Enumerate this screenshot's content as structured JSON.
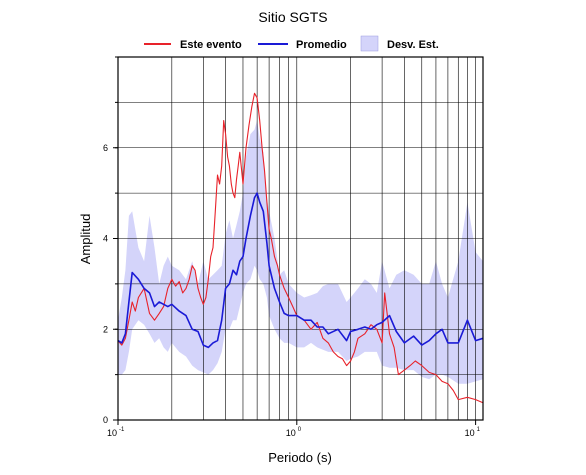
{
  "chart_data": {
    "type": "line",
    "title": "Sitio SGTS",
    "xlabel": "Periodo (s)",
    "ylabel": "Amplitud",
    "xscale": "log",
    "xlim": [
      0.1,
      11
    ],
    "ylim": [
      0,
      8
    ],
    "grid": true,
    "legend_position": "top",
    "x_ticks": [
      {
        "base": "10",
        "exp": "-1",
        "value": 0.1
      },
      {
        "base": "10",
        "exp": "0",
        "value": 1
      },
      {
        "base": "10",
        "exp": "1",
        "value": 10
      }
    ],
    "y_ticks": [
      0,
      2,
      4,
      6
    ],
    "legend": [
      {
        "label": "Este evento",
        "kind": "line",
        "color": "#e8222a"
      },
      {
        "label": "Promedio",
        "kind": "line",
        "color": "#1a1ad6"
      },
      {
        "label": "Desv. Est.",
        "kind": "band",
        "color": "#d4d4fa"
      }
    ],
    "series": [
      {
        "name": "Este evento",
        "color": "#e8222a",
        "x": [
          0.1,
          0.105,
          0.11,
          0.115,
          0.12,
          0.125,
          0.13,
          0.14,
          0.15,
          0.16,
          0.17,
          0.18,
          0.19,
          0.2,
          0.21,
          0.22,
          0.23,
          0.24,
          0.25,
          0.26,
          0.27,
          0.28,
          0.29,
          0.3,
          0.31,
          0.32,
          0.33,
          0.34,
          0.35,
          0.36,
          0.37,
          0.38,
          0.39,
          0.4,
          0.41,
          0.42,
          0.43,
          0.44,
          0.45,
          0.46,
          0.47,
          0.48,
          0.5,
          0.52,
          0.54,
          0.56,
          0.58,
          0.6,
          0.62,
          0.64,
          0.66,
          0.68,
          0.7,
          0.72,
          0.75,
          0.78,
          0.8,
          0.85,
          0.9,
          0.95,
          1.0,
          1.1,
          1.2,
          1.3,
          1.4,
          1.5,
          1.6,
          1.7,
          1.8,
          1.9,
          2.0,
          2.1,
          2.2,
          2.4,
          2.6,
          2.8,
          3.0,
          3.1,
          3.3,
          3.5,
          3.7,
          4.0,
          4.3,
          4.6,
          5.0,
          5.5,
          6.0,
          6.5,
          7.0,
          7.5,
          8.0,
          9.0,
          10.0,
          11.0
        ],
        "values": [
          1.75,
          1.65,
          1.8,
          2.2,
          2.6,
          2.4,
          2.7,
          2.9,
          2.35,
          2.2,
          2.35,
          2.5,
          2.9,
          3.1,
          2.95,
          3.05,
          2.8,
          2.9,
          3.1,
          3.4,
          3.3,
          2.9,
          2.7,
          2.55,
          2.7,
          3.1,
          3.6,
          3.8,
          4.6,
          5.4,
          5.2,
          5.6,
          6.6,
          6.3,
          5.8,
          5.6,
          5.2,
          5.0,
          4.9,
          5.3,
          5.6,
          5.9,
          5.2,
          6.0,
          6.5,
          6.9,
          7.2,
          7.1,
          6.6,
          6.0,
          5.5,
          4.8,
          4.2,
          4.0,
          3.6,
          3.4,
          3.2,
          2.9,
          2.7,
          2.5,
          2.3,
          2.2,
          2.0,
          2.15,
          1.8,
          1.7,
          1.5,
          1.4,
          1.35,
          1.2,
          1.3,
          1.5,
          1.8,
          1.9,
          2.1,
          2.0,
          1.7,
          2.8,
          1.9,
          1.6,
          1.0,
          1.1,
          1.2,
          1.3,
          1.2,
          1.05,
          1.0,
          0.85,
          0.8,
          0.65,
          0.45,
          0.5,
          0.45,
          0.38
        ]
      },
      {
        "name": "Promedio",
        "color": "#1a1ad6",
        "x": [
          0.1,
          0.105,
          0.11,
          0.115,
          0.12,
          0.13,
          0.14,
          0.15,
          0.16,
          0.17,
          0.18,
          0.19,
          0.2,
          0.22,
          0.24,
          0.26,
          0.28,
          0.3,
          0.32,
          0.34,
          0.36,
          0.38,
          0.4,
          0.42,
          0.44,
          0.46,
          0.48,
          0.5,
          0.52,
          0.55,
          0.58,
          0.6,
          0.62,
          0.65,
          0.68,
          0.7,
          0.75,
          0.8,
          0.85,
          0.9,
          1.0,
          1.1,
          1.2,
          1.3,
          1.4,
          1.5,
          1.7,
          1.9,
          2.0,
          2.2,
          2.4,
          2.6,
          2.8,
          3.0,
          3.3,
          3.6,
          4.0,
          4.5,
          5.0,
          5.5,
          6.0,
          6.5,
          7.0,
          8.0,
          9.0,
          10.0,
          11.0
        ],
        "values": [
          1.75,
          1.7,
          1.9,
          2.6,
          3.25,
          3.1,
          2.9,
          2.8,
          2.5,
          2.6,
          2.55,
          2.5,
          2.55,
          2.4,
          2.3,
          2.0,
          1.95,
          1.65,
          1.6,
          1.7,
          1.75,
          2.2,
          2.9,
          3.0,
          3.3,
          3.2,
          3.5,
          3.6,
          4.0,
          4.5,
          4.9,
          5.0,
          4.8,
          4.6,
          3.9,
          3.4,
          2.9,
          2.6,
          2.35,
          2.3,
          2.3,
          2.2,
          2.2,
          2.05,
          2.05,
          1.9,
          2.0,
          1.75,
          1.95,
          2.0,
          2.05,
          2.0,
          2.1,
          2.15,
          2.3,
          1.95,
          1.7,
          1.85,
          1.65,
          1.75,
          1.9,
          2.0,
          1.7,
          1.7,
          2.2,
          1.75,
          1.8
        ]
      }
    ],
    "band": {
      "name": "Desv. Est.",
      "color": "#d4d4fa",
      "x": [
        0.1,
        0.105,
        0.11,
        0.115,
        0.12,
        0.13,
        0.14,
        0.15,
        0.16,
        0.17,
        0.18,
        0.19,
        0.2,
        0.22,
        0.24,
        0.26,
        0.28,
        0.3,
        0.32,
        0.34,
        0.36,
        0.38,
        0.4,
        0.42,
        0.44,
        0.46,
        0.48,
        0.5,
        0.52,
        0.55,
        0.58,
        0.6,
        0.62,
        0.65,
        0.68,
        0.7,
        0.75,
        0.8,
        0.85,
        0.9,
        1.0,
        1.1,
        1.2,
        1.3,
        1.4,
        1.5,
        1.7,
        1.9,
        2.0,
        2.2,
        2.4,
        2.6,
        2.8,
        3.0,
        3.3,
        3.6,
        4.0,
        4.5,
        5.0,
        5.5,
        6.0,
        6.5,
        7.0,
        8.0,
        9.0,
        10.0,
        11.0
      ],
      "upper": [
        2.2,
        2.7,
        3.3,
        4.5,
        4.6,
        3.8,
        3.5,
        4.5,
        3.8,
        3.0,
        3.4,
        3.6,
        3.4,
        3.3,
        3.1,
        3.5,
        3.0,
        3.5,
        3.1,
        3.2,
        3.3,
        3.4,
        4.1,
        4.4,
        4.0,
        4.3,
        4.6,
        5.0,
        5.8,
        6.3,
        6.4,
        6.6,
        6.2,
        5.9,
        4.9,
        4.6,
        4.0,
        3.2,
        3.3,
        3.0,
        2.8,
        2.7,
        2.75,
        2.8,
        2.95,
        3.0,
        3.0,
        2.6,
        2.7,
        2.9,
        3.1,
        3.0,
        2.8,
        3.5,
        2.9,
        3.2,
        3.3,
        3.2,
        3.0,
        3.0,
        3.5,
        3.0,
        2.7,
        3.5,
        4.8,
        3.7,
        3.5
      ],
      "lower": [
        1.0,
        1.0,
        1.1,
        1.5,
        2.0,
        2.2,
        2.1,
        1.9,
        1.7,
        1.8,
        1.6,
        1.5,
        1.7,
        1.5,
        1.4,
        1.2,
        1.1,
        1.05,
        1.0,
        1.1,
        1.25,
        1.5,
        2.0,
        2.0,
        2.2,
        2.2,
        2.5,
        2.8,
        3.0,
        3.1,
        3.4,
        3.3,
        3.1,
        3.0,
        2.7,
        2.3,
        2.0,
        1.8,
        1.7,
        1.7,
        1.6,
        1.6,
        1.7,
        1.6,
        1.55,
        1.5,
        1.5,
        1.3,
        1.35,
        1.4,
        1.5,
        1.5,
        1.5,
        1.2,
        1.15,
        1.15,
        1.1,
        1.1,
        0.95,
        0.9,
        1.0,
        1.0,
        0.95,
        0.8,
        0.8,
        0.85,
        0.9
      ]
    }
  }
}
